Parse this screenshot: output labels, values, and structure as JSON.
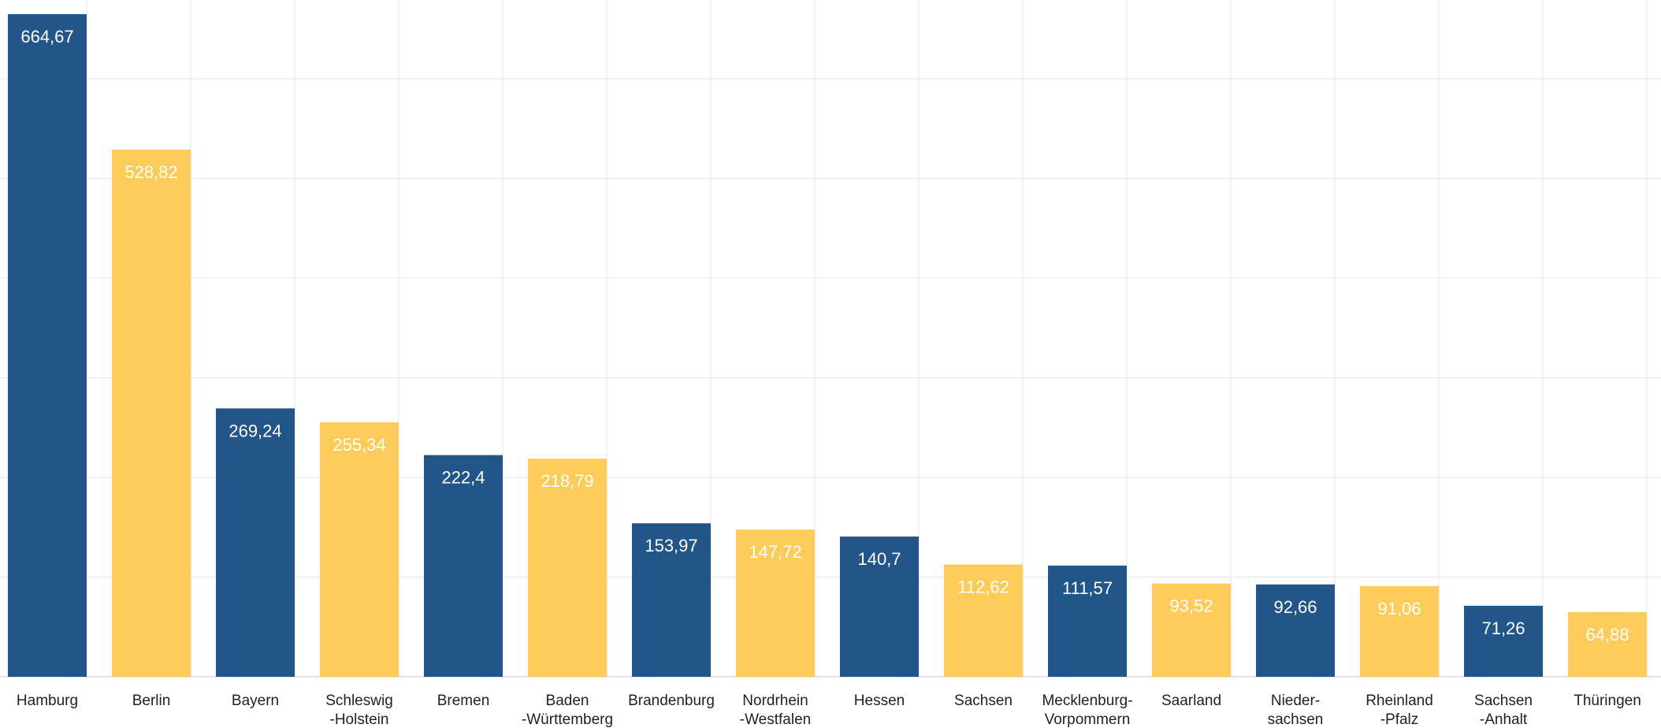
{
  "chart_data": {
    "type": "bar",
    "categories": [
      "Hamburg",
      "Berlin",
      "Bayern",
      "Schleswig\n-Holstein",
      "Bremen",
      "Baden\n-Württemberg",
      "Brandenburg",
      "Nordrhein\n-Westfalen",
      "Hessen",
      "Sachsen",
      "Mecklenburg-\nVorpommern",
      "Saarland",
      "Nieder-\nsachsen",
      "Rheinland\n-Pfalz",
      "Sachsen\n-Anhalt",
      "Thüringen"
    ],
    "values": [
      664.67,
      528.82,
      269.24,
      255.34,
      222.4,
      218.79,
      153.97,
      147.72,
      140.7,
      112.62,
      111.57,
      93.52,
      92.66,
      91.06,
      71.26,
      64.88
    ],
    "value_labels": [
      "664,67",
      "528,82",
      "269,24",
      "255,34",
      "222,4",
      "218,79",
      "153,97",
      "147,72",
      "140,7",
      "112,62",
      "111,57",
      "93,52",
      "92,66",
      "91,06",
      "71,26",
      "64,88"
    ],
    "title": "",
    "xlabel": "",
    "ylabel": "",
    "ylim": [
      0,
      700
    ],
    "grid": true,
    "legend": "none",
    "colors": {
      "blue": "#235688",
      "yellow": "#FDCC5A",
      "grid": "#e6e6e6",
      "axis": "#cccccc"
    }
  }
}
